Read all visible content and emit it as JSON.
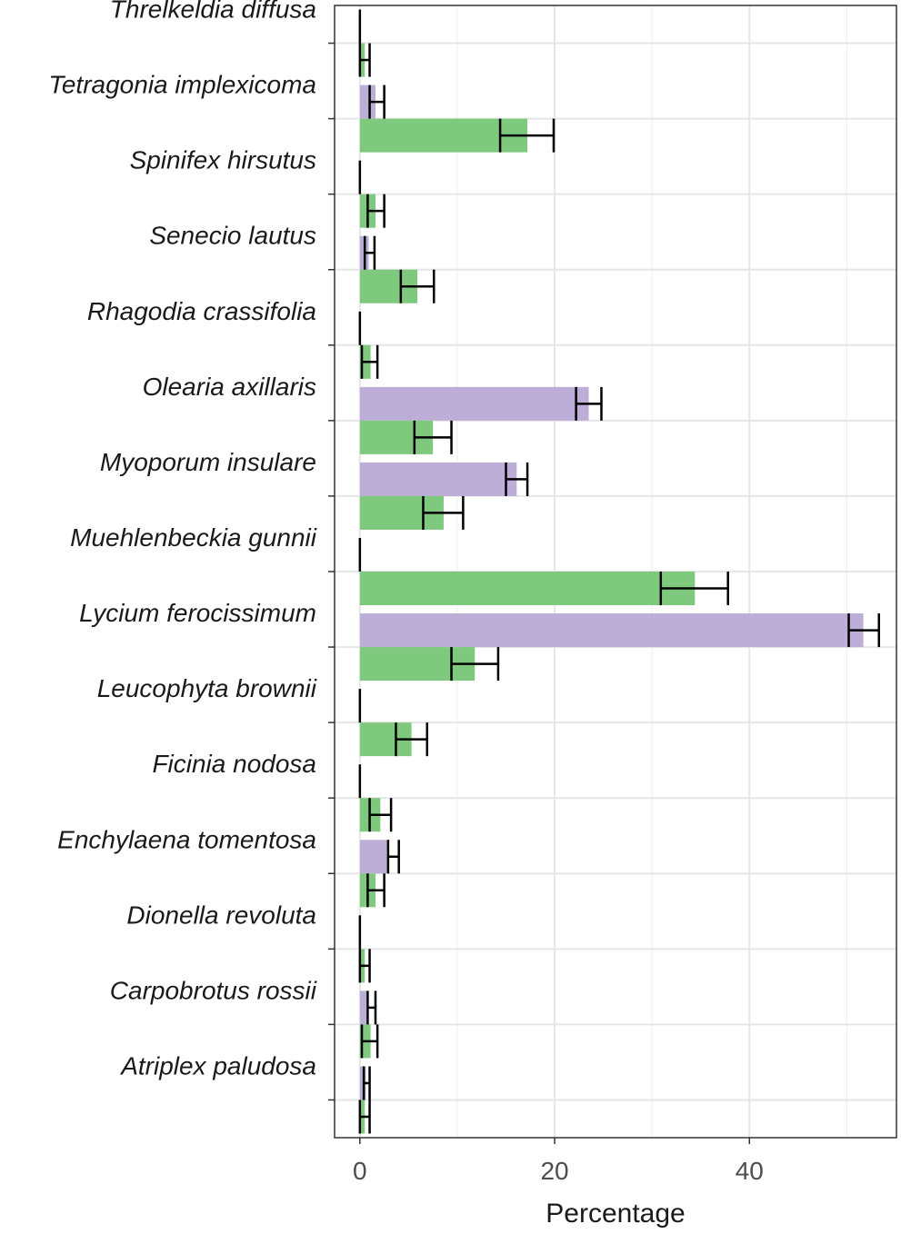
{
  "chart_data": {
    "type": "bar",
    "orientation": "horizontal",
    "title": "",
    "xlabel": "Percentage",
    "ylabel": "",
    "xlim": [
      -2.6,
      55.1
    ],
    "x_ticks": [
      0,
      20,
      40
    ],
    "grid": true,
    "legend": "none",
    "categories": [
      "Threlkeldia diffusa",
      "Tetragonia implexicoma",
      "Spinifex hirsutus",
      "Senecio lautus",
      "Rhagodia crassifolia",
      "Olearia axillaris",
      "Myoporum insulare",
      "Muehlenbeckia gunnii",
      "Lycium ferocissimum",
      "Leucophyta brownii",
      "Ficinia nodosa",
      "Enchylaena tomentosa",
      "Dionella revoluta",
      "Carpobrotus rossii",
      "Atriplex paludosa"
    ],
    "series": [
      {
        "color": "#bcaed6",
        "position": "upper",
        "values": [
          0,
          1.6,
          0,
          0.9,
          0,
          23.5,
          16.1,
          0,
          51.7,
          0,
          0,
          3.0,
          0,
          0.9,
          0.6
        ],
        "err_low": [
          0,
          1.0,
          0,
          0.5,
          0,
          22.2,
          15.0,
          0,
          50.2,
          0,
          0,
          2.9,
          0,
          0.8,
          0.4
        ],
        "err_high": [
          0,
          2.5,
          0,
          1.5,
          0,
          24.8,
          17.2,
          0,
          53.3,
          0,
          0,
          4.0,
          0,
          1.6,
          1.0
        ]
      },
      {
        "color": "#7fc97f",
        "position": "lower",
        "values": [
          0.5,
          17.2,
          1.6,
          5.9,
          1.1,
          7.5,
          8.6,
          34.4,
          11.8,
          5.3,
          2.1,
          1.6,
          0.5,
          1.1,
          0.5
        ],
        "err_low": [
          0,
          14.4,
          0.8,
          4.2,
          0.2,
          5.6,
          6.5,
          30.9,
          9.4,
          3.7,
          1.0,
          0.8,
          0,
          0.2,
          0
        ],
        "err_high": [
          1.0,
          19.9,
          2.5,
          7.6,
          1.8,
          9.4,
          10.6,
          37.8,
          14.2,
          6.9,
          3.2,
          2.5,
          1.0,
          1.8,
          1.0
        ]
      }
    ]
  }
}
